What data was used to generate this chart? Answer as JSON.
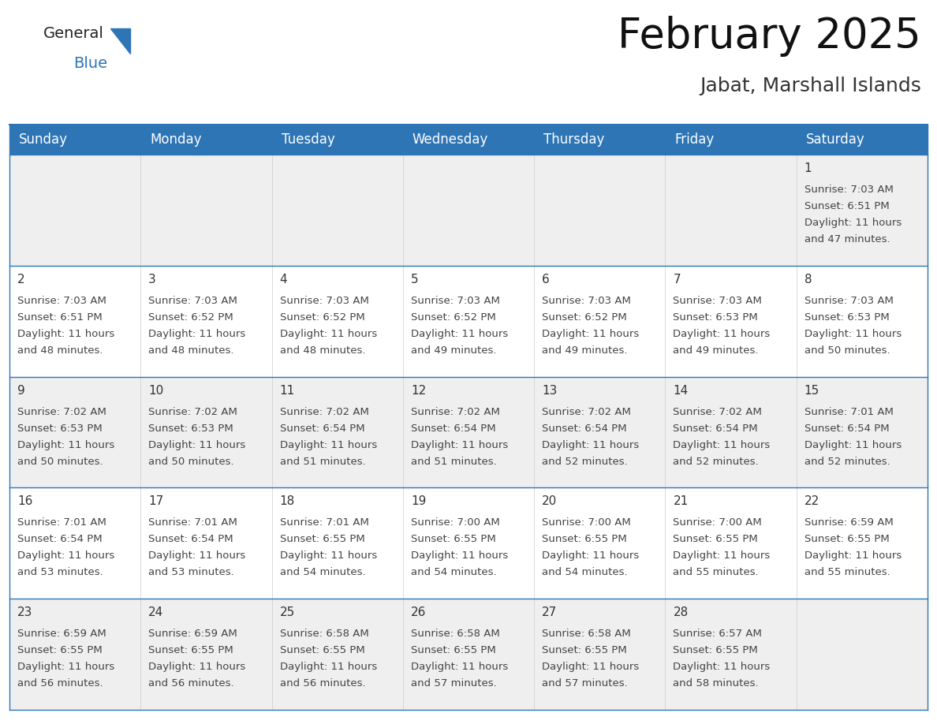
{
  "title": "February 2025",
  "subtitle": "Jabat, Marshall Islands",
  "header_bg": "#2E75B6",
  "header_text_color": "#FFFFFF",
  "cell_bg_odd": "#EFEFEF",
  "cell_bg_even": "#FFFFFF",
  "cell_border_color": "#2E75B6",
  "day_number_color": "#333333",
  "cell_text_color": "#444444",
  "background_color": "#FFFFFF",
  "days_of_week": [
    "Sunday",
    "Monday",
    "Tuesday",
    "Wednesday",
    "Thursday",
    "Friday",
    "Saturday"
  ],
  "weeks": [
    [
      {
        "day": "",
        "sunrise": "",
        "sunset": "",
        "daylight": ""
      },
      {
        "day": "",
        "sunrise": "",
        "sunset": "",
        "daylight": ""
      },
      {
        "day": "",
        "sunrise": "",
        "sunset": "",
        "daylight": ""
      },
      {
        "day": "",
        "sunrise": "",
        "sunset": "",
        "daylight": ""
      },
      {
        "day": "",
        "sunrise": "",
        "sunset": "",
        "daylight": ""
      },
      {
        "day": "",
        "sunrise": "",
        "sunset": "",
        "daylight": ""
      },
      {
        "day": "1",
        "sunrise": "7:03 AM",
        "sunset": "6:51 PM",
        "daylight": "11 hours and 47 minutes."
      }
    ],
    [
      {
        "day": "2",
        "sunrise": "7:03 AM",
        "sunset": "6:51 PM",
        "daylight": "11 hours and 48 minutes."
      },
      {
        "day": "3",
        "sunrise": "7:03 AM",
        "sunset": "6:52 PM",
        "daylight": "11 hours and 48 minutes."
      },
      {
        "day": "4",
        "sunrise": "7:03 AM",
        "sunset": "6:52 PM",
        "daylight": "11 hours and 48 minutes."
      },
      {
        "day": "5",
        "sunrise": "7:03 AM",
        "sunset": "6:52 PM",
        "daylight": "11 hours and 49 minutes."
      },
      {
        "day": "6",
        "sunrise": "7:03 AM",
        "sunset": "6:52 PM",
        "daylight": "11 hours and 49 minutes."
      },
      {
        "day": "7",
        "sunrise": "7:03 AM",
        "sunset": "6:53 PM",
        "daylight": "11 hours and 49 minutes."
      },
      {
        "day": "8",
        "sunrise": "7:03 AM",
        "sunset": "6:53 PM",
        "daylight": "11 hours and 50 minutes."
      }
    ],
    [
      {
        "day": "9",
        "sunrise": "7:02 AM",
        "sunset": "6:53 PM",
        "daylight": "11 hours and 50 minutes."
      },
      {
        "day": "10",
        "sunrise": "7:02 AM",
        "sunset": "6:53 PM",
        "daylight": "11 hours and 50 minutes."
      },
      {
        "day": "11",
        "sunrise": "7:02 AM",
        "sunset": "6:54 PM",
        "daylight": "11 hours and 51 minutes."
      },
      {
        "day": "12",
        "sunrise": "7:02 AM",
        "sunset": "6:54 PM",
        "daylight": "11 hours and 51 minutes."
      },
      {
        "day": "13",
        "sunrise": "7:02 AM",
        "sunset": "6:54 PM",
        "daylight": "11 hours and 52 minutes."
      },
      {
        "day": "14",
        "sunrise": "7:02 AM",
        "sunset": "6:54 PM",
        "daylight": "11 hours and 52 minutes."
      },
      {
        "day": "15",
        "sunrise": "7:01 AM",
        "sunset": "6:54 PM",
        "daylight": "11 hours and 52 minutes."
      }
    ],
    [
      {
        "day": "16",
        "sunrise": "7:01 AM",
        "sunset": "6:54 PM",
        "daylight": "11 hours and 53 minutes."
      },
      {
        "day": "17",
        "sunrise": "7:01 AM",
        "sunset": "6:54 PM",
        "daylight": "11 hours and 53 minutes."
      },
      {
        "day": "18",
        "sunrise": "7:01 AM",
        "sunset": "6:55 PM",
        "daylight": "11 hours and 54 minutes."
      },
      {
        "day": "19",
        "sunrise": "7:00 AM",
        "sunset": "6:55 PM",
        "daylight": "11 hours and 54 minutes."
      },
      {
        "day": "20",
        "sunrise": "7:00 AM",
        "sunset": "6:55 PM",
        "daylight": "11 hours and 54 minutes."
      },
      {
        "day": "21",
        "sunrise": "7:00 AM",
        "sunset": "6:55 PM",
        "daylight": "11 hours and 55 minutes."
      },
      {
        "day": "22",
        "sunrise": "6:59 AM",
        "sunset": "6:55 PM",
        "daylight": "11 hours and 55 minutes."
      }
    ],
    [
      {
        "day": "23",
        "sunrise": "6:59 AM",
        "sunset": "6:55 PM",
        "daylight": "11 hours and 56 minutes."
      },
      {
        "day": "24",
        "sunrise": "6:59 AM",
        "sunset": "6:55 PM",
        "daylight": "11 hours and 56 minutes."
      },
      {
        "day": "25",
        "sunrise": "6:58 AM",
        "sunset": "6:55 PM",
        "daylight": "11 hours and 56 minutes."
      },
      {
        "day": "26",
        "sunrise": "6:58 AM",
        "sunset": "6:55 PM",
        "daylight": "11 hours and 57 minutes."
      },
      {
        "day": "27",
        "sunrise": "6:58 AM",
        "sunset": "6:55 PM",
        "daylight": "11 hours and 57 minutes."
      },
      {
        "day": "28",
        "sunrise": "6:57 AM",
        "sunset": "6:55 PM",
        "daylight": "11 hours and 58 minutes."
      },
      {
        "day": "",
        "sunrise": "",
        "sunset": "",
        "daylight": ""
      }
    ]
  ],
  "logo_text1": "General",
  "logo_text2": "Blue",
  "logo_color1": "#222222",
  "logo_color2": "#2E75B6",
  "title_fontsize": 38,
  "subtitle_fontsize": 18,
  "header_fontsize": 12,
  "day_number_fontsize": 11,
  "cell_text_fontsize": 9.5
}
